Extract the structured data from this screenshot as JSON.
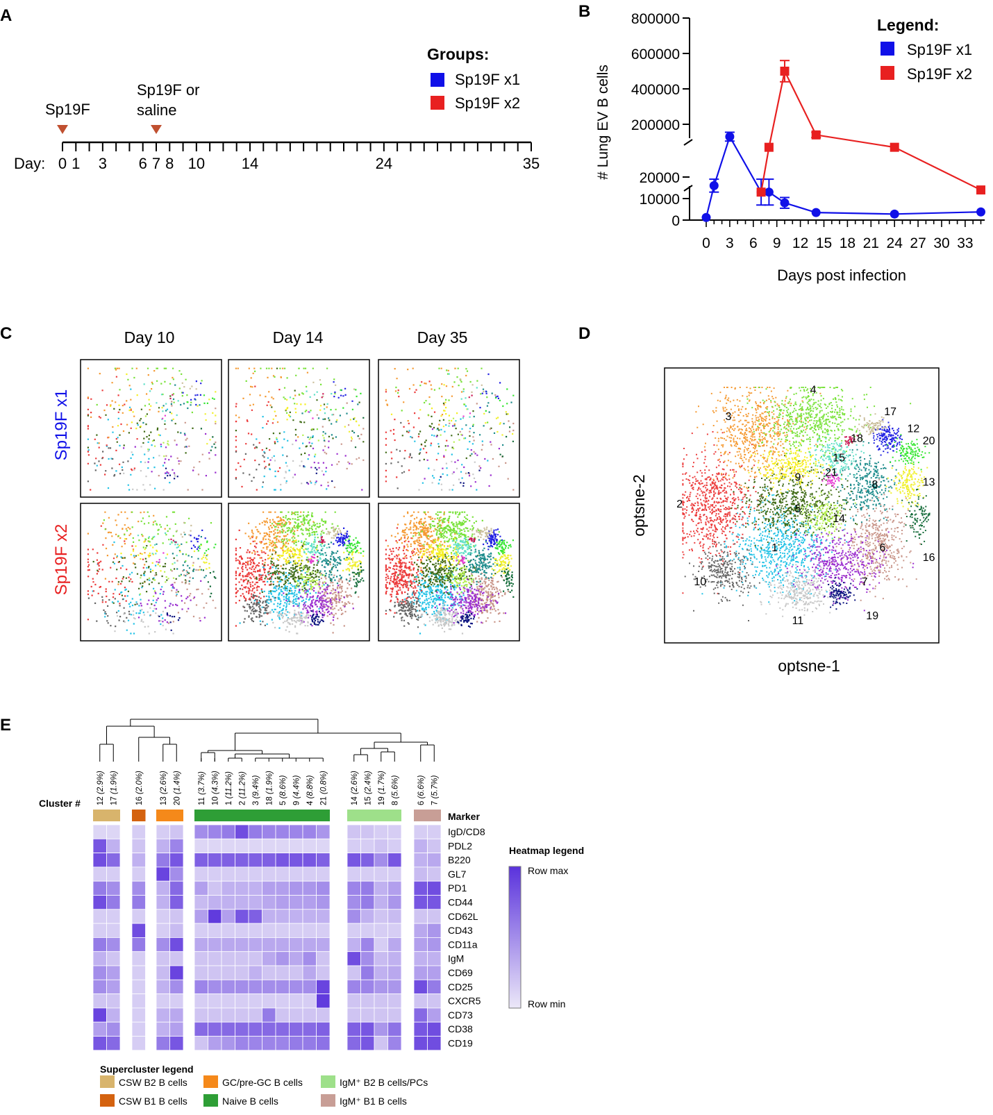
{
  "panels": {
    "a": "A",
    "b": "B",
    "c": "C",
    "d": "D",
    "e": "E"
  },
  "panelA": {
    "groups_title": "Groups:",
    "legend": [
      {
        "label": "Sp19F x1",
        "color": "#1010e8"
      },
      {
        "label": "Sp19F x2",
        "color": "#e82020"
      }
    ],
    "event1": "Sp19F",
    "event2_line1": "Sp19F or",
    "event2_line2": "saline",
    "day_label": "Day:",
    "labeled_days": [
      "0",
      "1",
      "3",
      "6",
      "7",
      "8",
      "10",
      "14",
      "24",
      "35"
    ],
    "arrow_color": "#c05030",
    "day_max": 35,
    "injection_days": [
      0,
      7
    ]
  },
  "panelB": {
    "legend_title": "Legend:",
    "ylabel": "# Lung EV B cells",
    "xlabel": "Days post infection",
    "y_upper_ticks": [
      "200000",
      "400000",
      "600000",
      "800000"
    ],
    "y_lower_ticks": [
      "0",
      "10000",
      "20000"
    ],
    "x_ticks": [
      "0",
      "3",
      "6",
      "9",
      "12",
      "15",
      "18",
      "21",
      "24",
      "27",
      "30",
      "33"
    ],
    "chart_data": {
      "type": "line",
      "title": "",
      "xlabel": "Days post infection",
      "ylabel": "# Lung EV B cells",
      "y_axis_break": [
        20000,
        200000
      ],
      "series": [
        {
          "name": "Sp19F x1",
          "color": "#1010e8",
          "marker": "circle",
          "x": [
            0,
            1,
            3,
            7,
            8,
            10,
            14,
            24,
            35
          ],
          "y": [
            1200,
            16000,
            130000,
            13000,
            13000,
            8000,
            3500,
            2800,
            3800
          ],
          "err": [
            0,
            3000,
            25000,
            6000,
            6000,
            2500,
            0,
            0,
            0
          ]
        },
        {
          "name": "Sp19F x2",
          "color": "#e82020",
          "marker": "square",
          "x": [
            7,
            8,
            10,
            14,
            24,
            35
          ],
          "y": [
            13000,
            70000,
            500000,
            140000,
            70000,
            14000
          ],
          "err": [
            0,
            0,
            60000,
            15000,
            0,
            0
          ]
        }
      ]
    }
  },
  "panelC": {
    "columns": [
      "Day 10",
      "Day 14",
      "Day 35"
    ],
    "rows": [
      {
        "label": "Sp19F x1",
        "color": "#1010e8"
      },
      {
        "label": "Sp19F x2",
        "color": "#e82020"
      }
    ]
  },
  "panelD": {
    "xlabel": "optsne-1",
    "ylabel": "optsne-2",
    "clusters": [
      "1",
      "2",
      "3",
      "4",
      "5",
      "6",
      "7",
      "8",
      "9",
      "10",
      "11",
      "12",
      "13",
      "14",
      "15",
      "16",
      "17",
      "18",
      "19",
      "20",
      "21"
    ]
  },
  "panelE": {
    "cluster_label": "Cluster #",
    "marker_label": "Marker",
    "heatmap_legend_title": "Heatmap legend",
    "row_max": "Row max",
    "row_min": "Row min",
    "supercluster_title": "Supercluster legend",
    "superclusters": [
      {
        "label": "CSW B2 B cells",
        "color": "#d8b46c"
      },
      {
        "label": "CSW B1 B cells",
        "color": "#d4620f"
      },
      {
        "label": "GC/pre-GC B cells",
        "color": "#f5891a"
      },
      {
        "label": "Naive B cells",
        "color": "#2e9e36"
      },
      {
        "label": "IgM⁺ B2 B cells/PCs",
        "color": "#9ee08a"
      },
      {
        "label": "IgM⁺ B1 B cells",
        "color": "#c89e96"
      }
    ],
    "cluster_groups": [
      {
        "super": 0,
        "clusters": [
          "12 (2.9%)",
          "17 (1.9%)"
        ]
      },
      {
        "super": 1,
        "clusters": [
          "16 (2.0%)"
        ]
      },
      {
        "super": 2,
        "clusters": [
          "13 (2.6%)",
          "20 (1.4%)"
        ]
      },
      {
        "super": 3,
        "clusters": [
          "11 (3.7%)",
          "10 (4.3%)",
          "1 (11.2%)",
          "2 (11.2%)",
          "3 (9.4%)",
          "18 (1.9%)",
          "5 (8.6%)",
          "9 (4.4%)",
          "4 (8.8%)",
          "21 (0.8%)"
        ]
      },
      {
        "super": 4,
        "clusters": [
          "14 (2.6%)",
          "15 (2.4%)",
          "19 (1.7%)",
          "8 (5.6%)"
        ]
      },
      {
        "super": 5,
        "clusters": [
          "6 (6.6%)",
          "7 (5.7%)"
        ]
      }
    ],
    "markers": [
      "IgD/CD8",
      "PDL2",
      "B220",
      "GL7",
      "PD1",
      "CD44",
      "CD62L",
      "CD43",
      "CD11a",
      "IgM",
      "CD69",
      "CD25",
      "CXCR5",
      "CD73",
      "CD38",
      "CD19"
    ],
    "heatmap_values": [
      [
        0.1,
        0.1,
        0.15,
        0.15,
        0.2,
        0.5,
        0.55,
        0.6,
        0.85,
        0.6,
        0.55,
        0.55,
        0.55,
        0.55,
        0.45,
        0.2,
        0.2,
        0.15,
        0.15,
        0.15,
        0.15
      ],
      [
        0.8,
        0.3,
        0.2,
        0.3,
        0.55,
        0.1,
        0.1,
        0.1,
        0.1,
        0.1,
        0.1,
        0.1,
        0.1,
        0.1,
        0.1,
        0.15,
        0.15,
        0.2,
        0.15,
        0.3,
        0.2
      ],
      [
        0.85,
        0.7,
        0.3,
        0.6,
        0.8,
        0.75,
        0.75,
        0.75,
        0.75,
        0.75,
        0.75,
        0.8,
        0.8,
        0.8,
        0.75,
        0.8,
        0.75,
        0.5,
        0.8,
        0.3,
        0.35
      ],
      [
        0.15,
        0.15,
        0.15,
        0.9,
        0.5,
        0.15,
        0.15,
        0.15,
        0.15,
        0.15,
        0.15,
        0.15,
        0.15,
        0.15,
        0.15,
        0.15,
        0.15,
        0.15,
        0.15,
        0.25,
        0.2
      ],
      [
        0.6,
        0.5,
        0.5,
        0.3,
        0.7,
        0.4,
        0.2,
        0.3,
        0.3,
        0.3,
        0.4,
        0.4,
        0.45,
        0.45,
        0.5,
        0.55,
        0.6,
        0.3,
        0.4,
        0.8,
        0.85
      ],
      [
        0.85,
        0.6,
        0.6,
        0.3,
        0.75,
        0.25,
        0.3,
        0.3,
        0.3,
        0.3,
        0.35,
        0.4,
        0.4,
        0.4,
        0.45,
        0.5,
        0.6,
        0.3,
        0.45,
        0.8,
        0.8
      ],
      [
        0.15,
        0.15,
        0.15,
        0.15,
        0.2,
        0.4,
        0.95,
        0.4,
        0.8,
        0.75,
        0.3,
        0.3,
        0.3,
        0.3,
        0.3,
        0.5,
        0.3,
        0.2,
        0.25,
        0.2,
        0.2
      ],
      [
        0.15,
        0.15,
        0.85,
        0.15,
        0.25,
        0.15,
        0.15,
        0.15,
        0.15,
        0.15,
        0.15,
        0.15,
        0.15,
        0.15,
        0.15,
        0.15,
        0.15,
        0.15,
        0.15,
        0.35,
        0.45
      ],
      [
        0.6,
        0.5,
        0.6,
        0.5,
        0.85,
        0.35,
        0.35,
        0.35,
        0.35,
        0.35,
        0.35,
        0.35,
        0.35,
        0.35,
        0.35,
        0.3,
        0.55,
        0.15,
        0.35,
        0.4,
        0.45
      ],
      [
        0.3,
        0.2,
        0.15,
        0.2,
        0.2,
        0.2,
        0.2,
        0.2,
        0.2,
        0.2,
        0.35,
        0.45,
        0.35,
        0.5,
        0.2,
        0.85,
        0.5,
        0.25,
        0.3,
        0.3,
        0.3
      ],
      [
        0.5,
        0.4,
        0.15,
        0.25,
        0.9,
        0.2,
        0.2,
        0.2,
        0.2,
        0.3,
        0.2,
        0.2,
        0.2,
        0.35,
        0.2,
        0.2,
        0.6,
        0.3,
        0.35,
        0.4,
        0.4
      ],
      [
        0.5,
        0.4,
        0.15,
        0.3,
        0.5,
        0.55,
        0.5,
        0.5,
        0.5,
        0.5,
        0.5,
        0.5,
        0.5,
        0.5,
        0.9,
        0.55,
        0.55,
        0.45,
        0.45,
        0.85,
        0.6
      ],
      [
        0.2,
        0.2,
        0.15,
        0.15,
        0.15,
        0.15,
        0.15,
        0.15,
        0.15,
        0.15,
        0.15,
        0.15,
        0.15,
        0.15,
        0.95,
        0.2,
        0.2,
        0.2,
        0.2,
        0.2,
        0.2
      ],
      [
        0.9,
        0.3,
        0.15,
        0.3,
        0.35,
        0.2,
        0.2,
        0.2,
        0.2,
        0.2,
        0.6,
        0.2,
        0.2,
        0.2,
        0.2,
        0.2,
        0.2,
        0.2,
        0.2,
        0.7,
        0.4
      ],
      [
        0.4,
        0.5,
        0.15,
        0.3,
        0.4,
        0.7,
        0.7,
        0.7,
        0.7,
        0.7,
        0.7,
        0.7,
        0.7,
        0.7,
        0.75,
        0.75,
        0.8,
        0.45,
        0.65,
        0.8,
        0.85
      ],
      [
        0.8,
        0.7,
        0.15,
        0.6,
        0.8,
        0.2,
        0.4,
        0.45,
        0.55,
        0.55,
        0.55,
        0.55,
        0.6,
        0.6,
        0.65,
        0.7,
        0.8,
        0.2,
        0.55,
        0.85,
        0.85
      ]
    ],
    "heatmap_colors": {
      "min": "#ece8f8",
      "max": "#5a32dc"
    }
  }
}
